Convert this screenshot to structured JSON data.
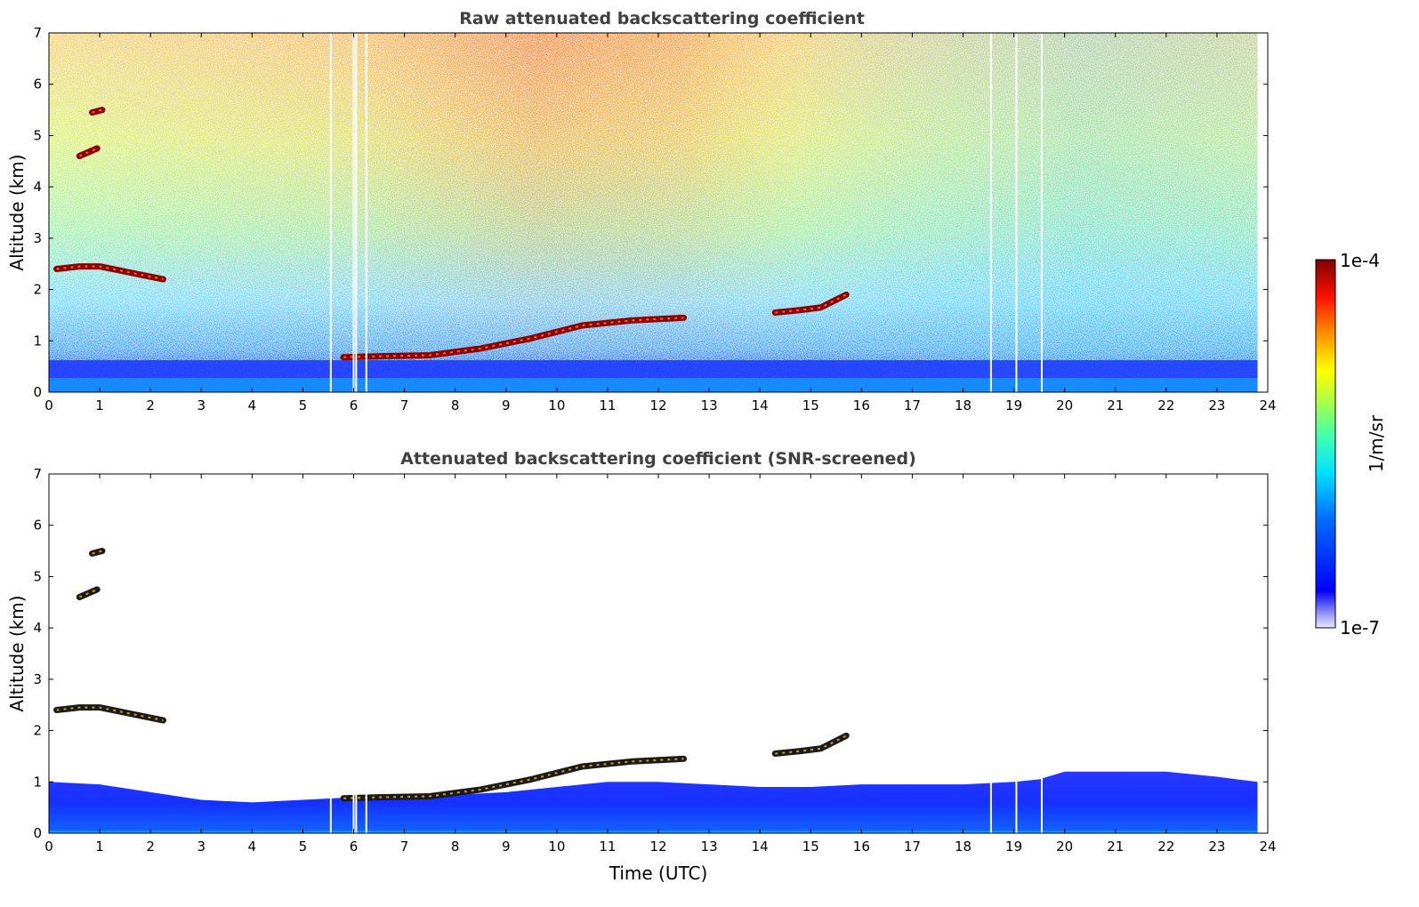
{
  "chart_data": [
    {
      "type": "heatmap",
      "title": "Raw attenuated backscattering coefficient",
      "xlabel": "",
      "ylabel": "Altitude (km)",
      "xlim": [
        0,
        24
      ],
      "ylim": [
        0,
        7
      ],
      "xticks": [
        "0",
        "1",
        "2",
        "3",
        "4",
        "5",
        "6",
        "7",
        "8",
        "9",
        "10",
        "11",
        "12",
        "13",
        "14",
        "15",
        "16",
        "17",
        "18",
        "19",
        "20",
        "21",
        "22",
        "23",
        "24"
      ],
      "yticks": [
        "0",
        "1",
        "2",
        "3",
        "4",
        "5",
        "6",
        "7"
      ],
      "data_end_time": 23.8,
      "grid": false,
      "colorscale": "jet",
      "features": {
        "cloud_layers": [
          {
            "times": [
              0.15,
              0.6,
              1.0,
              1.5,
              2.0,
              2.25
            ],
            "altitudes": [
              2.4,
              2.45,
              2.45,
              2.35,
              2.25,
              2.2
            ]
          },
          {
            "times": [
              5.8,
              6.5,
              7.5,
              8.5,
              9.5,
              10.5,
              11.5,
              12.5
            ],
            "altitudes": [
              0.68,
              0.7,
              0.72,
              0.85,
              1.05,
              1.3,
              1.4,
              1.45
            ]
          },
          {
            "times": [
              14.3,
              14.8,
              15.2,
              15.7
            ],
            "altitudes": [
              1.55,
              1.6,
              1.65,
              1.9
            ]
          },
          {
            "times": [
              0.6,
              0.95
            ],
            "altitudes": [
              4.6,
              4.75
            ]
          },
          {
            "times": [
              0.85,
              1.05
            ],
            "altitudes": [
              5.45,
              5.5
            ]
          }
        ],
        "data_gaps": [
          5.55,
          6.0,
          6.05,
          6.25,
          18.55,
          19.05,
          19.55
        ],
        "noise_trend": "signal noise increases with altitude; higher values near 6-13 UTC above 2 km"
      }
    },
    {
      "type": "heatmap",
      "title": "Attenuated backscattering coefficient (SNR-screened)",
      "xlabel": "Time (UTC)",
      "ylabel": "Altitude (km)",
      "xlim": [
        0,
        24
      ],
      "ylim": [
        0,
        7
      ],
      "xticks": [
        "0",
        "1",
        "2",
        "3",
        "4",
        "5",
        "6",
        "7",
        "8",
        "9",
        "10",
        "11",
        "12",
        "13",
        "14",
        "15",
        "16",
        "17",
        "18",
        "19",
        "20",
        "21",
        "22",
        "23",
        "24"
      ],
      "yticks": [
        "0",
        "1",
        "2",
        "3",
        "4",
        "5",
        "6",
        "7"
      ],
      "data_end_time": 23.8,
      "grid": false,
      "colorscale": "jet",
      "features": {
        "boundary_layer_top": {
          "times": [
            0,
            1,
            2,
            3,
            4,
            5,
            6,
            7,
            8,
            9,
            10,
            11,
            12,
            13,
            14,
            15,
            16,
            17,
            18,
            19,
            19.5,
            20,
            21,
            22,
            23,
            23.8
          ],
          "altitudes": [
            1.0,
            0.95,
            0.8,
            0.65,
            0.6,
            0.65,
            0.7,
            0.7,
            0.75,
            0.8,
            0.9,
            1.0,
            1.0,
            0.95,
            0.9,
            0.9,
            0.95,
            0.95,
            0.95,
            1.0,
            1.05,
            1.2,
            1.2,
            1.2,
            1.1,
            1.0
          ]
        },
        "data_gaps": [
          5.55,
          6.0,
          6.05,
          6.25,
          18.55,
          19.05,
          19.55
        ]
      }
    }
  ],
  "colorbar": {
    "min_label": "1e-7",
    "max_label": "1e-4",
    "unit_label": "1/m/sr",
    "colors": [
      "#00007f",
      "#0000ff",
      "#007fff",
      "#00ffff",
      "#7fff7f",
      "#ffff00",
      "#ff7f00",
      "#ff0000",
      "#7f0000"
    ]
  }
}
